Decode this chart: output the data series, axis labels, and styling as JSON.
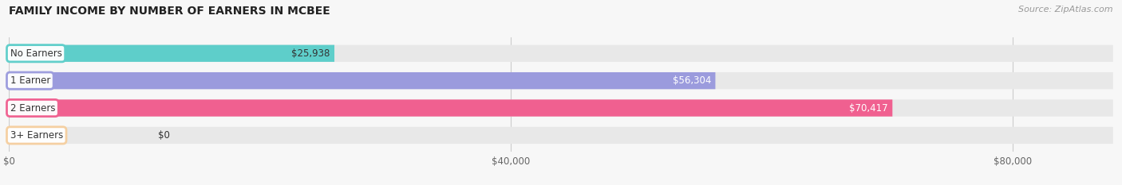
{
  "title": "FAMILY INCOME BY NUMBER OF EARNERS IN MCBEE",
  "source": "Source: ZipAtlas.com",
  "categories": [
    "No Earners",
    "1 Earner",
    "2 Earners",
    "3+ Earners"
  ],
  "values": [
    25938,
    56304,
    70417,
    0
  ],
  "bar_colors": [
    "#5ececa",
    "#9b9bdd",
    "#f06090",
    "#f5cfa0"
  ],
  "value_label_colors": [
    "#333333",
    "#ffffff",
    "#ffffff",
    "#333333"
  ],
  "value_labels": [
    "$25,938",
    "$56,304",
    "$70,417",
    "$0"
  ],
  "bar_bg_color": "#e8e8e8",
  "x_ticks": [
    0,
    40000,
    80000
  ],
  "x_tick_labels": [
    "$0",
    "$40,000",
    "$80,000"
  ],
  "xlim_max": 88000,
  "figsize": [
    14.06,
    2.33
  ],
  "dpi": 100,
  "background_color": "#f7f7f7"
}
